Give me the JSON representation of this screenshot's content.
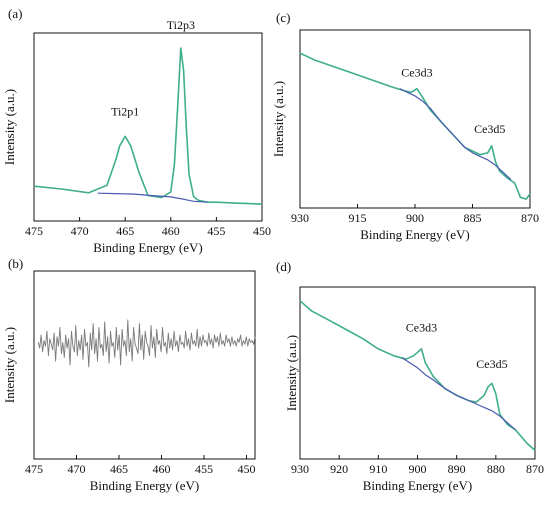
{
  "colors": {
    "fit": "#3fae8c",
    "background_line": "#4a5bb0",
    "raw_b": "#7a7a7a",
    "axis": "#111111"
  },
  "chart_data": [
    {
      "panel_label": "(a)",
      "type": "line",
      "xlabel": "Binding Energy (eV)",
      "ylabel": "Intensity (a.u.)",
      "xlim": [
        475,
        450
      ],
      "x_reversed": true,
      "xticks": [
        475,
        470,
        465,
        460,
        455,
        450
      ],
      "ylim": [
        0,
        1
      ],
      "series": [
        {
          "role": "fit",
          "x": [
            475,
            472,
            469,
            467,
            466,
            465.6,
            465,
            464.4,
            463.5,
            462.5,
            461,
            460,
            459.6,
            459.2,
            458.9,
            458.6,
            458.3,
            458,
            457.5,
            457,
            456,
            455,
            453,
            450
          ],
          "y": [
            0.185,
            0.17,
            0.15,
            0.19,
            0.33,
            0.4,
            0.45,
            0.4,
            0.26,
            0.135,
            0.125,
            0.155,
            0.3,
            0.65,
            0.92,
            0.8,
            0.5,
            0.25,
            0.13,
            0.11,
            0.1,
            0.1,
            0.095,
            0.09
          ]
        },
        {
          "role": "background",
          "x": [
            468,
            466,
            464,
            462,
            460,
            458.5,
            457.5,
            456
          ],
          "y": [
            0.148,
            0.146,
            0.143,
            0.135,
            0.128,
            0.115,
            0.105,
            0.1
          ]
        }
      ],
      "annotations": [
        {
          "text": "Ti2p1",
          "x": 465,
          "y": 0.56
        },
        {
          "text": "Ti2p3",
          "x": 458.9,
          "y": 1.02
        }
      ]
    },
    {
      "panel_label": "(b)",
      "type": "line",
      "xlabel": "Binding Energy (eV)",
      "ylabel": "Intensity (a.u.)",
      "xlim": [
        475,
        449
      ],
      "x_reversed": true,
      "xticks": [
        475,
        470,
        465,
        460,
        455,
        450
      ],
      "ylim": [
        0,
        1
      ],
      "series": [
        {
          "role": "noisy-spectrum",
          "x_start": 474.5,
          "x_step": -0.17,
          "y": [
            0.62,
            0.59,
            0.66,
            0.57,
            0.63,
            0.6,
            0.68,
            0.55,
            0.64,
            0.61,
            0.58,
            0.67,
            0.52,
            0.65,
            0.6,
            0.7,
            0.56,
            0.62,
            0.54,
            0.66,
            0.59,
            0.64,
            0.5,
            0.68,
            0.6,
            0.57,
            0.71,
            0.55,
            0.63,
            0.58,
            0.66,
            0.53,
            0.69,
            0.6,
            0.62,
            0.49,
            0.67,
            0.58,
            0.72,
            0.56,
            0.64,
            0.52,
            0.7,
            0.59,
            0.61,
            0.55,
            0.73,
            0.57,
            0.65,
            0.51,
            0.68,
            0.6,
            0.62,
            0.54,
            0.7,
            0.58,
            0.66,
            0.5,
            0.69,
            0.6,
            0.63,
            0.55,
            0.74,
            0.57,
            0.64,
            0.52,
            0.7,
            0.61,
            0.59,
            0.56,
            0.72,
            0.58,
            0.66,
            0.53,
            0.68,
            0.62,
            0.6,
            0.55,
            0.71,
            0.59,
            0.65,
            0.54,
            0.69,
            0.61,
            0.63,
            0.57,
            0.7,
            0.6,
            0.62,
            0.56,
            0.67,
            0.59,
            0.64,
            0.58,
            0.68,
            0.6,
            0.63,
            0.57,
            0.66,
            0.61,
            0.62,
            0.59,
            0.68,
            0.6,
            0.64,
            0.58,
            0.67,
            0.61,
            0.63,
            0.6,
            0.69,
            0.59,
            0.65,
            0.6,
            0.66,
            0.62,
            0.63,
            0.6,
            0.67,
            0.61,
            0.64,
            0.59,
            0.66,
            0.62,
            0.65,
            0.6,
            0.67,
            0.61,
            0.63,
            0.6,
            0.66,
            0.62,
            0.64,
            0.6,
            0.65,
            0.61,
            0.63,
            0.6,
            0.64,
            0.62,
            0.66,
            0.6,
            0.63,
            0.61,
            0.65,
            0.6,
            0.64,
            0.62,
            0.63,
            0.61,
            0.65
          ]
        }
      ]
    },
    {
      "panel_label": "(c)",
      "type": "line",
      "xlabel": "Binding Energy (eV)",
      "ylabel": "Intensity (a.u.)",
      "xlim": [
        930,
        870
      ],
      "x_reversed": true,
      "xticks": [
        930,
        915,
        900,
        885,
        870
      ],
      "ylim": [
        0,
        1
      ],
      "series": [
        {
          "role": "fit",
          "x": [
            930,
            926,
            922,
            918,
            914,
            910,
            906,
            903,
            901,
            899.5,
            898,
            896,
            893,
            890,
            887,
            885,
            883,
            881,
            880,
            879,
            878,
            876,
            874,
            872.5,
            871,
            870
          ],
          "y": [
            0.87,
            0.83,
            0.8,
            0.77,
            0.74,
            0.71,
            0.68,
            0.66,
            0.65,
            0.67,
            0.62,
            0.55,
            0.48,
            0.41,
            0.34,
            0.32,
            0.3,
            0.31,
            0.35,
            0.26,
            0.21,
            0.17,
            0.14,
            0.06,
            0.05,
            0.08
          ]
        },
        {
          "role": "background",
          "x": [
            904,
            902,
            900,
            898,
            896,
            893,
            890,
            887,
            885,
            883,
            881,
            879,
            877,
            875
          ],
          "y": [
            0.67,
            0.65,
            0.63,
            0.6,
            0.56,
            0.48,
            0.41,
            0.34,
            0.31,
            0.29,
            0.27,
            0.24,
            0.2,
            0.16
          ]
        }
      ],
      "annotations": [
        {
          "text": "Ce3d3",
          "x": 899.5,
          "y": 0.74
        },
        {
          "text": "Ce3d5",
          "x": 880.5,
          "y": 0.42
        }
      ]
    },
    {
      "panel_label": "(d)",
      "type": "line",
      "xlabel": "Binding Energy (eV)",
      "ylabel": "Intensity (a.u.)",
      "xlim": [
        930,
        870
      ],
      "x_reversed": true,
      "xticks": [
        930,
        920,
        910,
        900,
        890,
        880,
        870
      ],
      "ylim": [
        0,
        1
      ],
      "series": [
        {
          "role": "fit",
          "x": [
            930,
            927,
            922,
            918,
            914,
            910,
            906,
            903,
            901,
            899,
            898,
            896,
            893,
            890,
            887,
            885,
            883,
            882,
            881,
            880,
            879,
            877,
            875,
            872,
            870
          ],
          "y": [
            0.92,
            0.86,
            0.8,
            0.75,
            0.7,
            0.64,
            0.6,
            0.58,
            0.6,
            0.64,
            0.56,
            0.48,
            0.41,
            0.37,
            0.34,
            0.33,
            0.37,
            0.42,
            0.44,
            0.38,
            0.26,
            0.2,
            0.17,
            0.09,
            0.05
          ]
        },
        {
          "role": "background",
          "x": [
            904,
            902,
            900,
            898,
            896,
            893,
            890,
            887,
            885,
            883,
            881,
            879,
            877,
            875
          ],
          "y": [
            0.59,
            0.56,
            0.53,
            0.49,
            0.46,
            0.41,
            0.37,
            0.34,
            0.32,
            0.3,
            0.28,
            0.25,
            0.21,
            0.17
          ]
        }
      ],
      "annotations": [
        {
          "text": "Ce3d3",
          "x": 899,
          "y": 0.74
        },
        {
          "text": "Ce3d5",
          "x": 881,
          "y": 0.53
        }
      ]
    }
  ]
}
